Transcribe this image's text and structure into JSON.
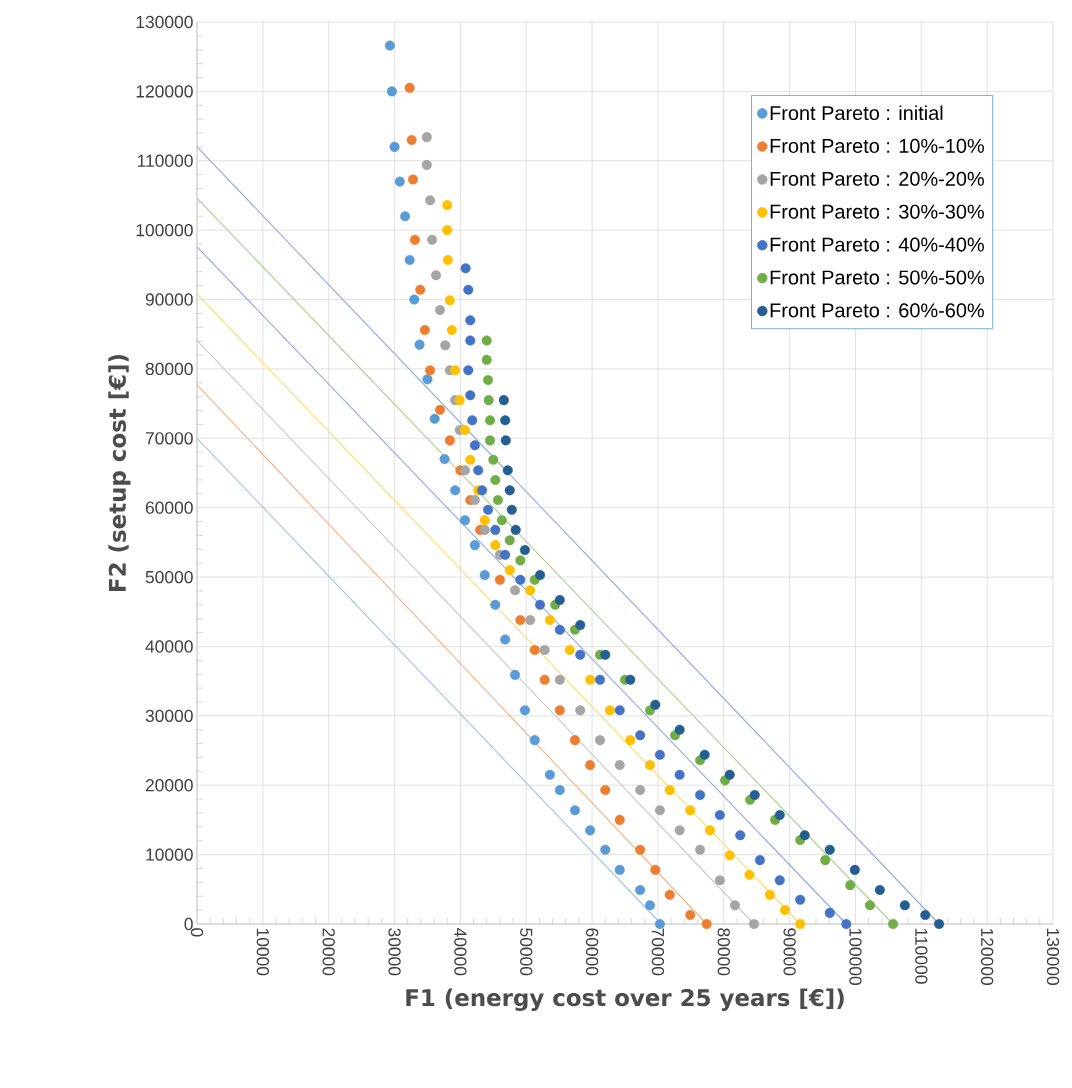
{
  "chart_data": {
    "type": "scatter",
    "xlabel": "F1 (energy cost over 25 years [€])",
    "ylabel": "F2 (setup cost [€])",
    "xlim": [
      0,
      130000
    ],
    "ylim": [
      0,
      130000
    ],
    "xticks": [
      0,
      10000,
      20000,
      30000,
      40000,
      50000,
      60000,
      70000,
      80000,
      90000,
      100000,
      110000,
      120000,
      130000
    ],
    "yticks": [
      0,
      10000,
      20000,
      30000,
      40000,
      50000,
      60000,
      70000,
      80000,
      90000,
      100000,
      110000,
      120000,
      130000
    ],
    "grid": true,
    "legend": "top right",
    "marker": "circle",
    "series": [
      {
        "type": "line",
        "marker": "none",
        "color": "#9dc3e6",
        "x": [
          0,
          70500
        ],
        "values": [
          70000,
          0
        ]
      },
      {
        "type": "line",
        "marker": "none",
        "color": "#f4b183",
        "x": [
          0,
          77400
        ],
        "values": [
          77700,
          0
        ]
      },
      {
        "type": "line",
        "marker": "none",
        "color": "#c9c9c9",
        "x": [
          0,
          84600
        ],
        "values": [
          84100,
          0
        ]
      },
      {
        "type": "line",
        "marker": "none",
        "color": "#ffd966",
        "x": [
          0,
          91600
        ],
        "values": [
          90800,
          0
        ]
      },
      {
        "type": "line",
        "marker": "none",
        "color": "#8faadc",
        "x": [
          0,
          98600
        ],
        "values": [
          97600,
          0
        ]
      },
      {
        "type": "line",
        "marker": "none",
        "color": "#a9d18e",
        "x": [
          0,
          105700
        ],
        "values": [
          104600,
          0
        ]
      },
      {
        "type": "line",
        "marker": "none",
        "color": "#8faadc",
        "x": [
          0,
          112700
        ],
        "values": [
          112000,
          0
        ]
      },
      {
        "name": "Front Pareto : initial",
        "color": "#5b9bd5",
        "x": [
          29300,
          29600,
          30000,
          30800,
          31600,
          32300,
          33000,
          33800,
          35000,
          36100,
          37600,
          39200,
          40700,
          42200,
          43700,
          45300,
          46800,
          48300,
          49800,
          51300,
          53600,
          55100,
          57400,
          59700,
          62000,
          64200,
          67300,
          68800,
          70300
        ],
        "values": [
          126600,
          120000,
          112000,
          107000,
          102000,
          95700,
          90000,
          83500,
          78500,
          72800,
          67000,
          62500,
          58200,
          54600,
          50300,
          46000,
          41000,
          35900,
          30800,
          26500,
          21500,
          19300,
          16400,
          13500,
          10700,
          7800,
          4900,
          2700,
          0
        ]
      },
      {
        "name": "Front Pareto : 10%-10%",
        "color": "#ed7d31",
        "x": [
          32300,
          32600,
          32800,
          33100,
          33900,
          34600,
          35400,
          36900,
          38400,
          40000,
          41500,
          43000,
          46000,
          49100,
          51300,
          52800,
          55100,
          57400,
          59700,
          62000,
          64200,
          67300,
          69600,
          71800,
          74900,
          77400
        ],
        "values": [
          120500,
          113000,
          107300,
          98600,
          91400,
          85600,
          79800,
          74100,
          69700,
          65400,
          61100,
          56800,
          49600,
          43800,
          39500,
          35200,
          30800,
          26500,
          22900,
          19300,
          15000,
          10700,
          7800,
          4200,
          1300,
          0
        ]
      },
      {
        "name": "Front Pareto : 20%-20%",
        "color": "#a5a5a5",
        "x": [
          34900,
          34900,
          35400,
          35700,
          36300,
          36900,
          37700,
          38400,
          39200,
          39900,
          40700,
          42200,
          43700,
          46000,
          48300,
          50600,
          52800,
          55100,
          58200,
          61200,
          64200,
          67300,
          70300,
          73300,
          76400,
          79400,
          81700,
          84600
        ],
        "values": [
          113400,
          109400,
          104300,
          98600,
          93500,
          88500,
          83400,
          79800,
          75500,
          71200,
          65400,
          61100,
          56800,
          53200,
          48100,
          43800,
          39500,
          35200,
          30800,
          26500,
          22900,
          19300,
          16400,
          13500,
          10700,
          6300,
          2700,
          0
        ]
      },
      {
        "name": "Front Pareto : 30%-30%",
        "color": "#ffc000",
        "x": [
          38000,
          38000,
          38100,
          38400,
          38700,
          39200,
          39900,
          40700,
          41500,
          42700,
          43700,
          45300,
          47500,
          50600,
          53600,
          56600,
          59700,
          62700,
          65800,
          68800,
          71800,
          74900,
          77900,
          80900,
          83900,
          87000,
          89300,
          91600
        ],
        "values": [
          103600,
          100000,
          95700,
          89900,
          85600,
          79800,
          75500,
          71200,
          66900,
          62500,
          58200,
          54600,
          51000,
          48100,
          43800,
          39500,
          35200,
          30800,
          26500,
          22900,
          19300,
          16400,
          13500,
          9900,
          7100,
          4200,
          2000,
          0
        ]
      },
      {
        "name": "Front Pareto : 40%-40%",
        "color": "#4472c4",
        "x": [
          40800,
          41200,
          41500,
          41500,
          41200,
          41500,
          41800,
          42200,
          42700,
          43300,
          44200,
          45300,
          46800,
          49100,
          52100,
          55100,
          58200,
          61200,
          64200,
          67300,
          70300,
          73300,
          76400,
          79400,
          82500,
          85500,
          88500,
          91600,
          96100,
          98600
        ],
        "values": [
          94500,
          91400,
          87000,
          84100,
          79800,
          76200,
          72600,
          69000,
          65400,
          62500,
          59700,
          56800,
          53200,
          49600,
          46000,
          42400,
          38800,
          35200,
          30800,
          27200,
          24400,
          21500,
          18600,
          15700,
          12800,
          9200,
          6300,
          3500,
          1600,
          0
        ]
      },
      {
        "name": "Front Pareto : 50%-50%",
        "color": "#70ad47",
        "x": [
          44000,
          44000,
          44200,
          44300,
          44500,
          44500,
          45000,
          45300,
          45700,
          46300,
          47500,
          49100,
          51300,
          54400,
          57400,
          61200,
          65000,
          68800,
          72600,
          76400,
          80200,
          84000,
          87800,
          91600,
          95400,
          99200,
          102200,
          105700
        ],
        "values": [
          84100,
          81300,
          78400,
          75500,
          72600,
          69700,
          66900,
          64000,
          61100,
          58200,
          55300,
          52400,
          49600,
          46000,
          42400,
          38800,
          35200,
          30800,
          27200,
          23600,
          20700,
          17900,
          15000,
          12100,
          9200,
          5600,
          2700,
          0
        ]
      },
      {
        "name": "Front Pareto : 60%-60%",
        "color": "#255e91",
        "x": [
          46600,
          46800,
          46900,
          47200,
          47500,
          47800,
          48400,
          49800,
          52100,
          55100,
          58200,
          62000,
          65800,
          69600,
          73300,
          77100,
          80900,
          84700,
          88500,
          92300,
          96100,
          99900,
          103700,
          107500,
          110600,
          112700
        ],
        "values": [
          75500,
          72600,
          69700,
          65400,
          62500,
          59700,
          56800,
          53900,
          50300,
          46700,
          43100,
          38800,
          35200,
          31600,
          28000,
          24400,
          21500,
          18600,
          15700,
          12800,
          10700,
          7800,
          4900,
          2700,
          1300,
          0
        ]
      }
    ]
  }
}
